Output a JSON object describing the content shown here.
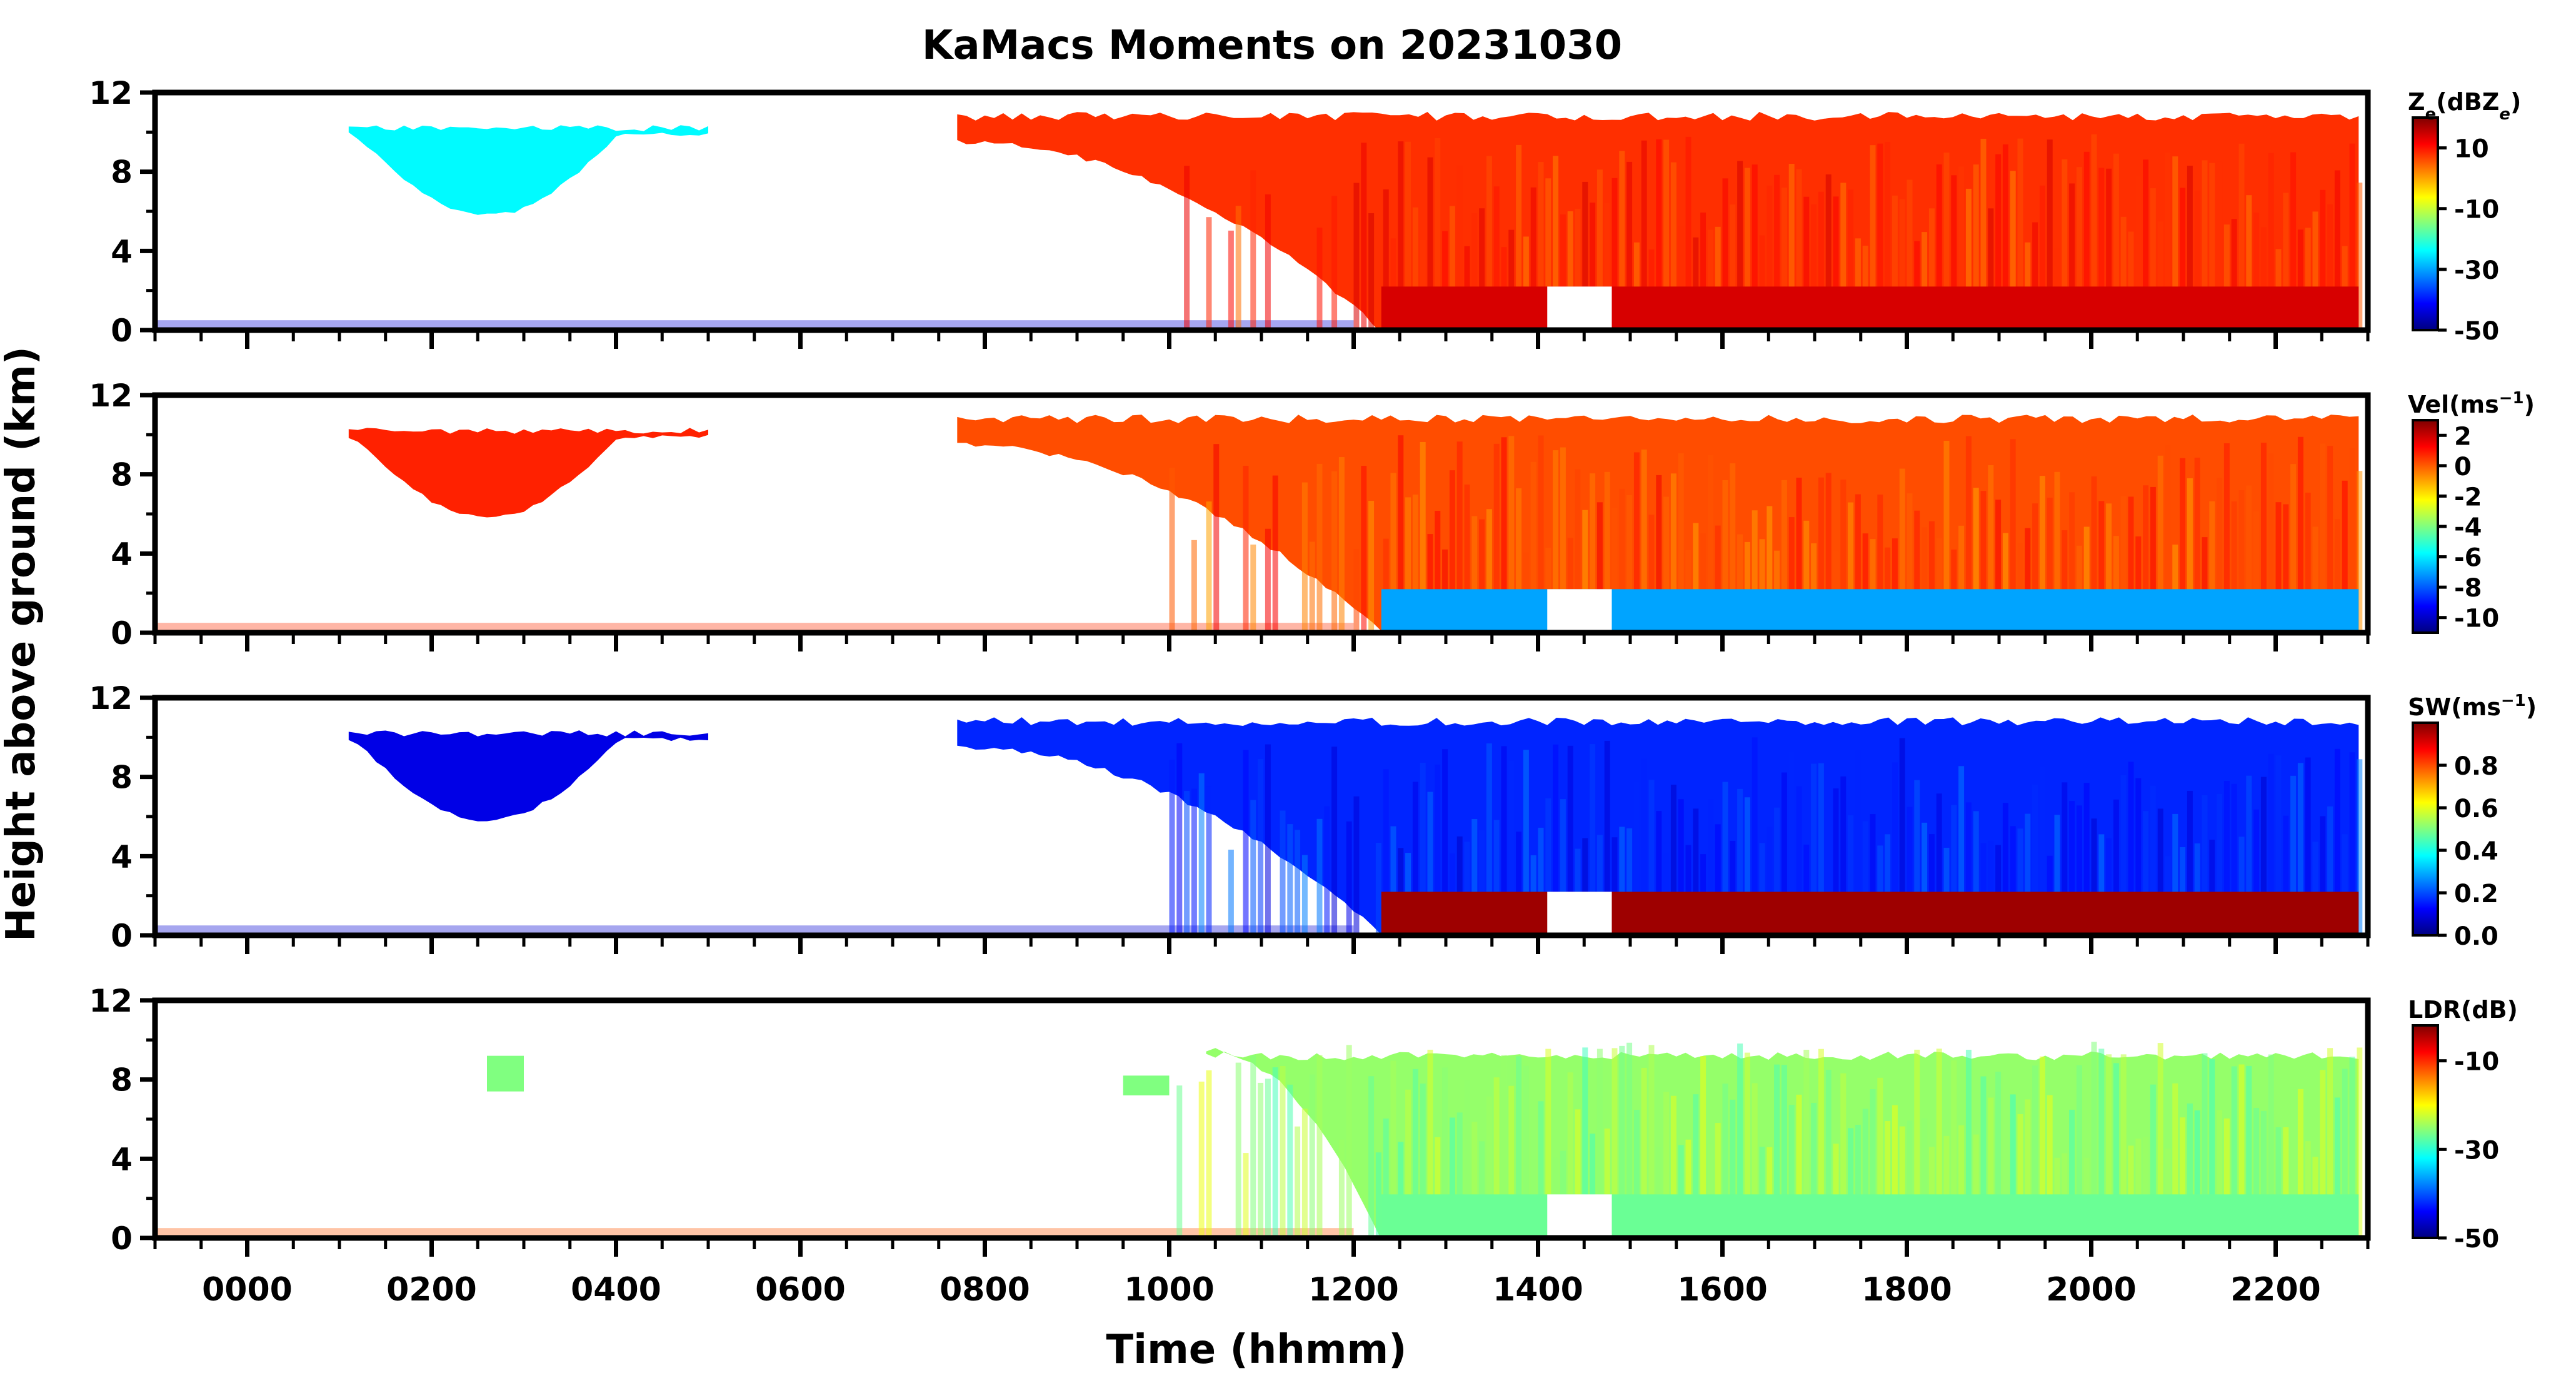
{
  "chart_data": {
    "type": "heatmap",
    "title": "KaMacs Moments on 20231030",
    "xlabel": "Time (hhmm)",
    "ylabel": "Height above ground (km)",
    "xlim": [
      -100,
      2300
    ],
    "x_tick_labels": [
      "0000",
      "0200",
      "0400",
      "0600",
      "0800",
      "1000",
      "1200",
      "1400",
      "1600",
      "1800",
      "2000",
      "2200"
    ],
    "x_tick_values": [
      0,
      200,
      400,
      600,
      800,
      1000,
      1200,
      1400,
      1600,
      1800,
      2000,
      2200
    ],
    "ylim": [
      0,
      12
    ],
    "y_tick_labels": [
      "0",
      "4",
      "8",
      "12"
    ],
    "y_tick_values": [
      0,
      4,
      8,
      12
    ],
    "panels": [
      {
        "variable": "Ze",
        "colorbar_label_main": "Z",
        "colorbar_label_sub": "e",
        "colorbar_label_unit_open": "(dBZ",
        "colorbar_label_unit_sub": "e",
        "colorbar_label_unit_close": ")",
        "cbar_range": [
          -50,
          20
        ],
        "cbar_ticks": [
          10,
          -10,
          -30,
          -50
        ],
        "cbar_tick_labels": [
          "10",
          "-10",
          "-30",
          "-50"
        ],
        "value_min": -50,
        "value_max": 20,
        "clear_air_value": -44,
        "low_level_value": 14,
        "dense_cloud_value": 8,
        "thin_cloud_value": -24
      },
      {
        "variable": "Vel",
        "colorbar_label_main": "Vel(ms",
        "colorbar_label_sup": "−1",
        "colorbar_label_close": ")",
        "cbar_range": [
          -11,
          3
        ],
        "cbar_ticks": [
          2,
          0,
          -2,
          -4,
          -6,
          -8,
          -10
        ],
        "cbar_tick_labels": [
          "2",
          "0",
          "-2",
          "-4",
          "-6",
          "-8",
          "-10"
        ],
        "value_min": -11,
        "value_max": 3,
        "clear_air_value": 0.6,
        "low_level_value": -7.0,
        "dense_cloud_value": 0.2,
        "thin_cloud_value": 0.8
      },
      {
        "variable": "SW",
        "colorbar_label_main": "SW(ms",
        "colorbar_label_sup": "−1",
        "colorbar_label_close": ")",
        "cbar_range": [
          0,
          1
        ],
        "cbar_ticks": [
          0.8,
          0.6,
          0.4,
          0.2,
          0.0
        ],
        "cbar_tick_labels": [
          "0.8",
          "0.6",
          "0.4",
          "0.2",
          "0.0"
        ],
        "value_min": 0,
        "value_max": 1,
        "clear_air_value": 0.08,
        "low_level_value": 0.97,
        "dense_cloud_value": 0.16,
        "thin_cloud_value": 0.1
      },
      {
        "variable": "LDR",
        "colorbar_label_main": "LDR(dB)",
        "cbar_range": [
          -50,
          -2
        ],
        "cbar_ticks": [
          -10,
          -30,
          -50
        ],
        "cbar_tick_labels": [
          "-10",
          "-30",
          "-50"
        ],
        "value_min": -50,
        "value_max": -2,
        "clear_air_value": -12,
        "low_level_value": -27,
        "dense_cloud_value": -25,
        "thin_cloud_value": -26
      }
    ],
    "cloud_echo": {
      "early_cloud": {
        "time_range": [
          110,
          500
        ],
        "top_km": 10.2,
        "base_km": 5.8
      },
      "main_cloud": {
        "time_range": [
          770,
          2290
        ],
        "top_km": 10.8,
        "base_km_at_start": 9.5,
        "base_km_at_1230": 0.0
      },
      "precipitation_layer": {
        "time_range": [
          1230,
          2290
        ],
        "top_km": 2.2
      },
      "clear_air_layer": {
        "time_range": [
          -100,
          1200
        ],
        "top_km": 0.5
      }
    }
  }
}
